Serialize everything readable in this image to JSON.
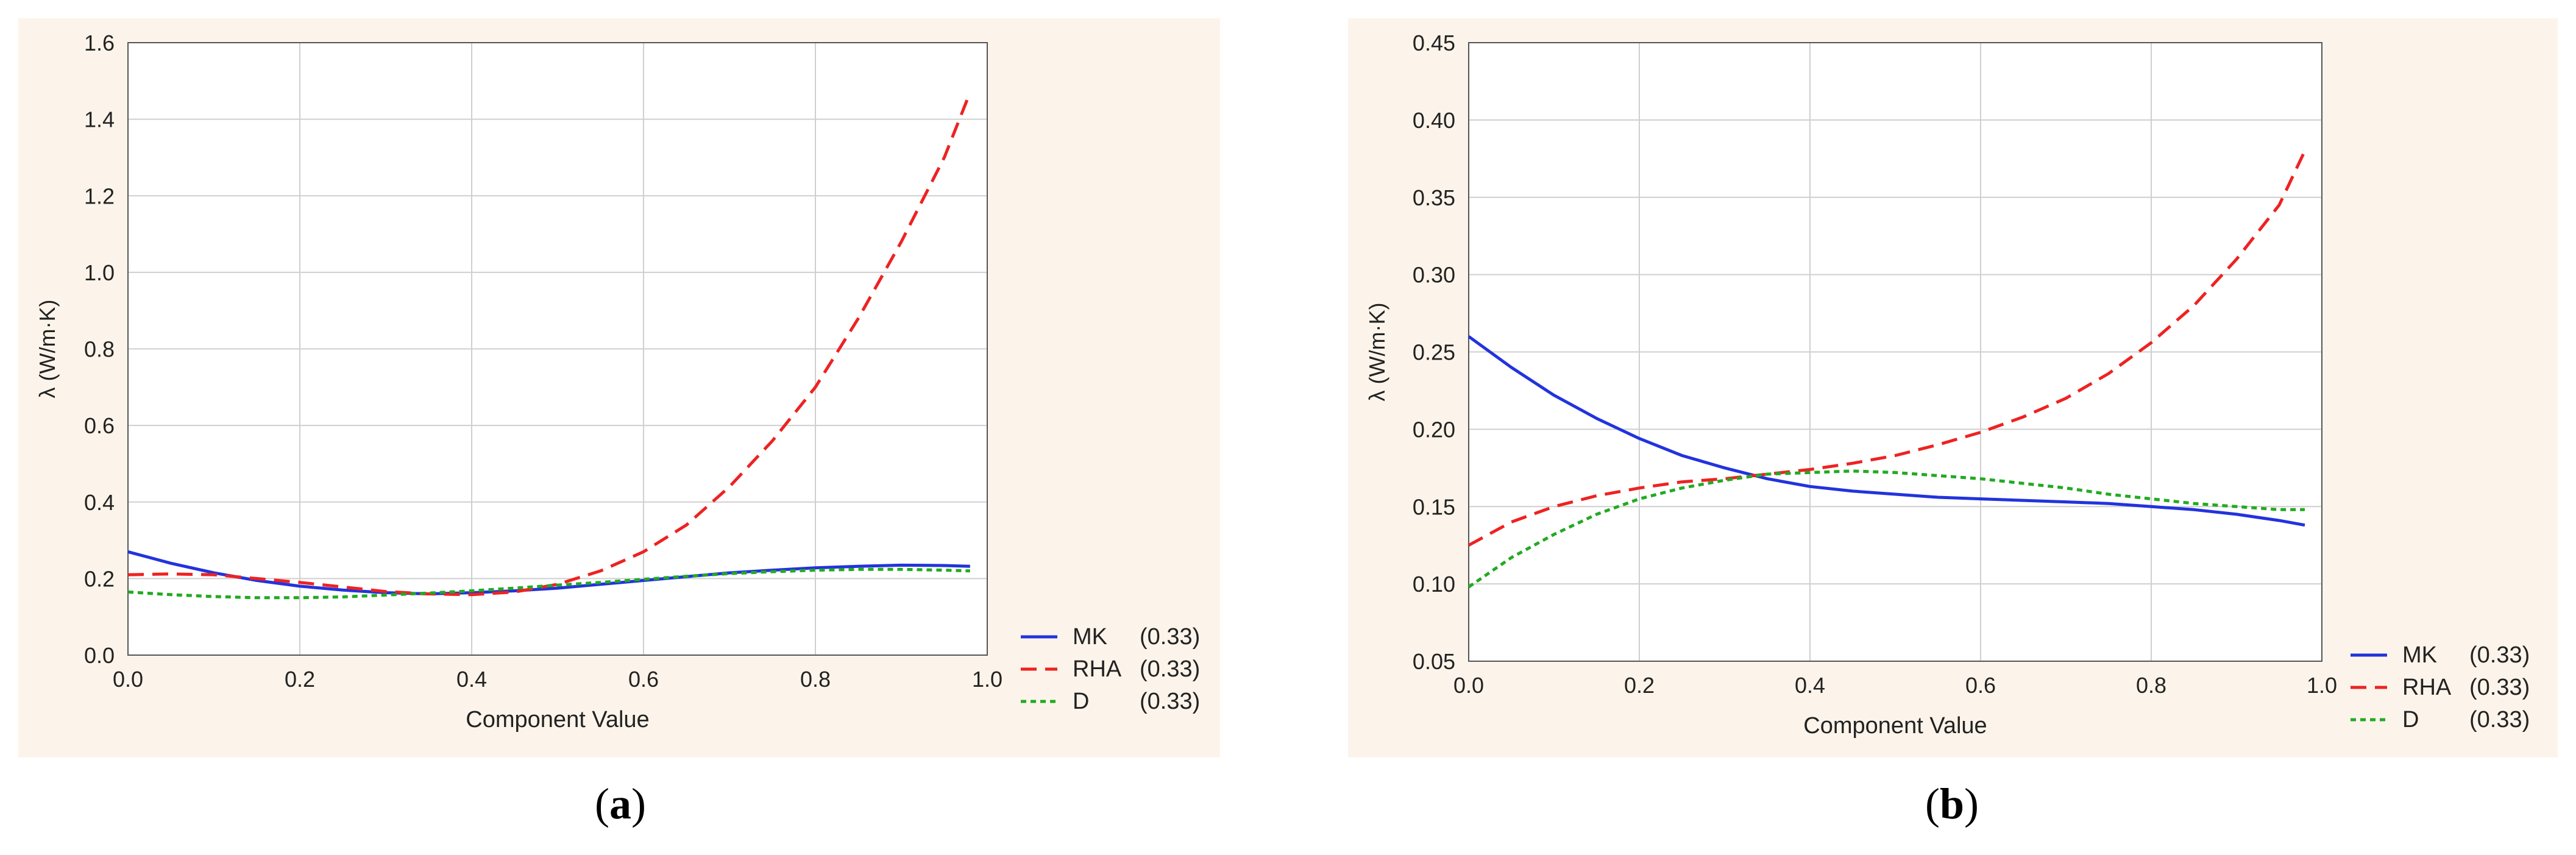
{
  "captions": {
    "a": "a",
    "b": "b"
  },
  "chart_data": [
    {
      "type": "line",
      "panel": "a",
      "xlabel": "Component Value",
      "ylabel": "λ (W/m·K)",
      "xlim": [
        0,
        1.0
      ],
      "ylim": [
        0,
        1.6
      ],
      "xticks": [
        "0.0",
        "0.2",
        "0.4",
        "0.6",
        "0.8",
        "1.0"
      ],
      "yticks": [
        "0.0",
        "0.2",
        "0.4",
        "0.6",
        "0.8",
        "1.0",
        "1.2",
        "1.4",
        "1.6"
      ],
      "grid": true,
      "legend_position": "bottom-right",
      "series": [
        {
          "name": "MK",
          "value_label": "(0.33)",
          "style": "solid",
          "color": "#2233dd",
          "x": [
            0.0,
            0.05,
            0.1,
            0.15,
            0.2,
            0.25,
            0.3,
            0.35,
            0.4,
            0.45,
            0.5,
            0.55,
            0.6,
            0.65,
            0.7,
            0.75,
            0.8,
            0.85,
            0.9,
            0.95,
            0.98
          ],
          "y": [
            0.27,
            0.24,
            0.215,
            0.195,
            0.18,
            0.17,
            0.163,
            0.16,
            0.163,
            0.168,
            0.175,
            0.185,
            0.195,
            0.205,
            0.215,
            0.222,
            0.228,
            0.232,
            0.235,
            0.234,
            0.232
          ]
        },
        {
          "name": "RHA",
          "value_label": "(0.33)",
          "style": "dashed",
          "color": "#ee2222",
          "x": [
            0.0,
            0.05,
            0.1,
            0.15,
            0.2,
            0.25,
            0.3,
            0.35,
            0.4,
            0.45,
            0.5,
            0.55,
            0.6,
            0.65,
            0.7,
            0.75,
            0.8,
            0.85,
            0.9,
            0.95,
            0.98
          ],
          "y": [
            0.21,
            0.212,
            0.21,
            0.2,
            0.19,
            0.178,
            0.166,
            0.16,
            0.158,
            0.165,
            0.185,
            0.22,
            0.27,
            0.34,
            0.44,
            0.56,
            0.7,
            0.88,
            1.08,
            1.3,
            1.47
          ]
        },
        {
          "name": "D",
          "value_label": "(0.33)",
          "style": "dotted",
          "color": "#22aa22",
          "x": [
            0.0,
            0.05,
            0.1,
            0.15,
            0.2,
            0.25,
            0.3,
            0.35,
            0.4,
            0.45,
            0.5,
            0.55,
            0.6,
            0.65,
            0.7,
            0.75,
            0.8,
            0.85,
            0.9,
            0.95,
            0.98
          ],
          "y": [
            0.165,
            0.158,
            0.153,
            0.15,
            0.15,
            0.152,
            0.157,
            0.162,
            0.168,
            0.175,
            0.183,
            0.19,
            0.198,
            0.206,
            0.213,
            0.218,
            0.222,
            0.224,
            0.224,
            0.222,
            0.22
          ]
        }
      ]
    },
    {
      "type": "line",
      "panel": "b",
      "xlabel": "Component Value",
      "ylabel": "λ (W/m·K)",
      "xlim": [
        0,
        1.0
      ],
      "ylim": [
        0.05,
        0.45
      ],
      "xticks": [
        "0.0",
        "0.2",
        "0.4",
        "0.6",
        "0.8",
        "1.0"
      ],
      "yticks": [
        "0.05",
        "0.10",
        "0.15",
        "0.20",
        "0.25",
        "0.30",
        "0.35",
        "0.40",
        "0.45"
      ],
      "grid": true,
      "legend_position": "bottom-right",
      "series": [
        {
          "name": "MK",
          "value_label": "(0.33)",
          "style": "solid",
          "color": "#2233dd",
          "x": [
            0.0,
            0.05,
            0.1,
            0.15,
            0.2,
            0.25,
            0.3,
            0.35,
            0.4,
            0.45,
            0.5,
            0.55,
            0.6,
            0.65,
            0.7,
            0.75,
            0.8,
            0.85,
            0.9,
            0.95,
            0.98
          ],
          "y": [
            0.26,
            0.24,
            0.222,
            0.207,
            0.194,
            0.183,
            0.175,
            0.168,
            0.163,
            0.16,
            0.158,
            0.156,
            0.155,
            0.154,
            0.153,
            0.152,
            0.15,
            0.148,
            0.145,
            0.141,
            0.138
          ]
        },
        {
          "name": "RHA",
          "value_label": "(0.33)",
          "style": "dashed",
          "color": "#ee2222",
          "x": [
            0.0,
            0.05,
            0.1,
            0.15,
            0.2,
            0.25,
            0.3,
            0.35,
            0.4,
            0.45,
            0.5,
            0.55,
            0.6,
            0.65,
            0.7,
            0.75,
            0.8,
            0.85,
            0.9,
            0.95,
            0.98
          ],
          "y": [
            0.125,
            0.14,
            0.15,
            0.157,
            0.162,
            0.166,
            0.168,
            0.171,
            0.174,
            0.178,
            0.183,
            0.19,
            0.198,
            0.208,
            0.22,
            0.236,
            0.256,
            0.28,
            0.31,
            0.345,
            0.38
          ]
        },
        {
          "name": "D",
          "value_label": "(0.33)",
          "style": "dotted",
          "color": "#22aa22",
          "x": [
            0.0,
            0.05,
            0.1,
            0.15,
            0.2,
            0.25,
            0.3,
            0.35,
            0.4,
            0.45,
            0.5,
            0.55,
            0.6,
            0.65,
            0.7,
            0.75,
            0.8,
            0.85,
            0.9,
            0.95,
            0.98
          ],
          "y": [
            0.098,
            0.117,
            0.132,
            0.145,
            0.155,
            0.162,
            0.167,
            0.171,
            0.172,
            0.173,
            0.172,
            0.17,
            0.168,
            0.165,
            0.162,
            0.158,
            0.155,
            0.152,
            0.15,
            0.148,
            0.148
          ]
        }
      ]
    }
  ]
}
